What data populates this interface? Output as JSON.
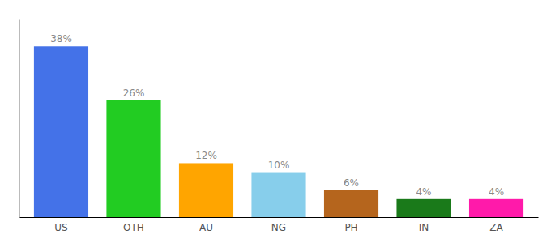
{
  "chart_data": {
    "type": "bar",
    "categories": [
      "US",
      "OTH",
      "AU",
      "NG",
      "PH",
      "IN",
      "ZA"
    ],
    "values": [
      38,
      26,
      12,
      10,
      6,
      4,
      4
    ],
    "value_labels": [
      "38%",
      "26%",
      "12%",
      "10%",
      "6%",
      "4%",
      "4%"
    ],
    "colors": [
      "#4472e8",
      "#22cc22",
      "#ffa500",
      "#87ceeb",
      "#b5651d",
      "#1a7a1a",
      "#ff1aaa"
    ],
    "ylim": [
      0,
      44
    ],
    "data_labels": true,
    "tick_labels": "x",
    "grid": false
  }
}
